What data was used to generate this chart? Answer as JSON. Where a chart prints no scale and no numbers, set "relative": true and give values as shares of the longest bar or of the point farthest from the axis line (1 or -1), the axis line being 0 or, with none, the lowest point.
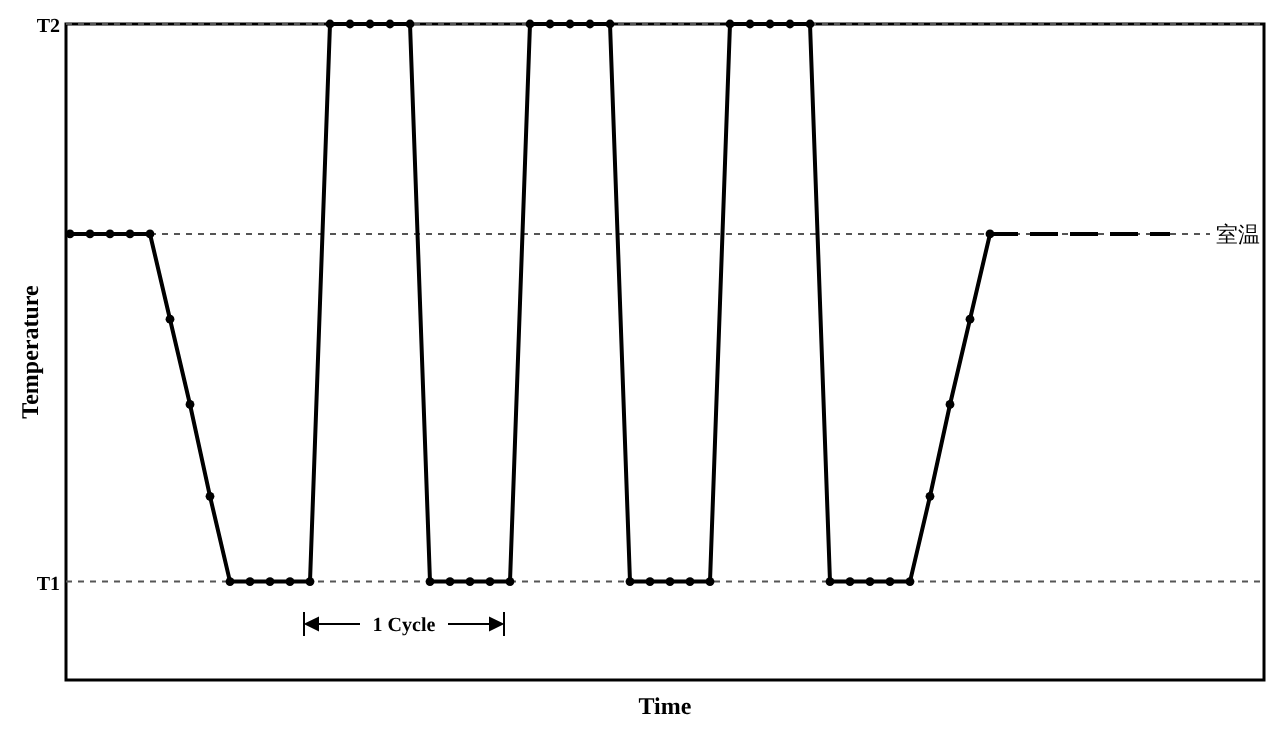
{
  "chart_data": {
    "type": "line",
    "relative": true,
    "xlabel": "Time",
    "ylabel": "Temperature",
    "categories": [
      null,
      null,
      null,
      null,
      null,
      null,
      null,
      null,
      null,
      null,
      null,
      null,
      null,
      null,
      null,
      null,
      null,
      null,
      null,
      null,
      null,
      null,
      null,
      null,
      null,
      null,
      null,
      null,
      null,
      null,
      null,
      null,
      null,
      null,
      null,
      null,
      null,
      null,
      null,
      null,
      null,
      null,
      null,
      null,
      null,
      null,
      null,
      null,
      null,
      null,
      null,
      null,
      null,
      null,
      null,
      null
    ],
    "series": [
      {
        "color": "#000000",
        "marker": "circle",
        "line_style": "solid",
        "values": [
          0.68,
          0.68,
          0.68,
          0.68,
          0.68,
          0.55,
          0.42,
          0.28,
          0.15,
          0.15,
          0.15,
          0.15,
          0.15,
          1,
          1,
          1,
          1,
          1,
          0.15,
          0.15,
          0.15,
          0.15,
          0.15,
          1,
          1,
          1,
          1,
          1,
          0.15,
          0.15,
          0.15,
          0.15,
          0.15,
          1,
          1,
          1,
          1,
          1,
          0.15,
          0.15,
          0.15,
          0.15,
          0.15,
          0.28,
          0.42,
          0.55,
          0.68,
          null,
          null,
          null,
          null,
          null,
          null,
          null,
          null,
          null
        ]
      },
      {
        "color": "#000000",
        "marker": "none",
        "line_style": "dashed",
        "values": [
          null,
          null,
          null,
          null,
          null,
          null,
          null,
          null,
          null,
          null,
          null,
          null,
          null,
          null,
          null,
          null,
          null,
          null,
          null,
          null,
          null,
          null,
          null,
          null,
          null,
          null,
          null,
          null,
          null,
          null,
          null,
          null,
          null,
          null,
          null,
          null,
          null,
          null,
          null,
          null,
          null,
          null,
          null,
          null,
          null,
          null,
          0.68,
          0.68,
          0.68,
          0.68,
          0.68,
          0.68,
          0.68,
          0.68,
          0.68,
          0.68
        ]
      }
    ],
    "ref_lines": [
      {
        "axis": "y",
        "value": 1,
        "label": "T2",
        "color": "#555555",
        "line_style": "dotted"
      },
      {
        "axis": "y",
        "value": 0.68,
        "label": "室温",
        "color": "#555555",
        "line_style": "dotted"
      },
      {
        "axis": "y",
        "value": 0.15,
        "label": "T1",
        "color": "#555555",
        "line_style": "dotted"
      }
    ],
    "annotations": [
      "1 Cycle"
    ]
  }
}
